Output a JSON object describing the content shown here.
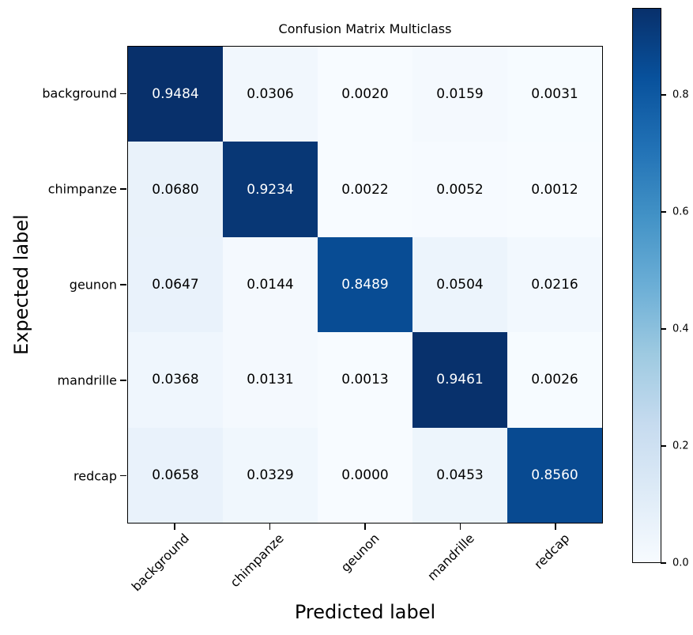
{
  "chart_data": {
    "type": "heatmap",
    "title": "Confusion Matrix Multiclass",
    "xlabel": "Predicted label",
    "ylabel": "Expected label",
    "x_categories": [
      "background",
      "chimpanze",
      "geunon",
      "mandrille",
      "redcap"
    ],
    "y_categories": [
      "background",
      "chimpanze",
      "geunon",
      "mandrille",
      "redcap"
    ],
    "matrix": [
      [
        0.9484,
        0.0306,
        0.002,
        0.0159,
        0.0031
      ],
      [
        0.068,
        0.9234,
        0.0022,
        0.0052,
        0.0012
      ],
      [
        0.0647,
        0.0144,
        0.8489,
        0.0504,
        0.0216
      ],
      [
        0.0368,
        0.0131,
        0.0013,
        0.9461,
        0.0026
      ],
      [
        0.0658,
        0.0329,
        0.0,
        0.0453,
        0.856
      ]
    ],
    "value_format_decimals": 4,
    "grid": false,
    "colormap": {
      "name": "Blues",
      "anchors": [
        "#f7fbff",
        "#deebf7",
        "#c6dbef",
        "#9ecae1",
        "#6baed6",
        "#4292c6",
        "#2171b5",
        "#08519c",
        "#08306b"
      ]
    },
    "colorbar": {
      "position": "right",
      "vmin": 0.0,
      "vmax": 0.9484,
      "tick_values": [
        0.0,
        0.2,
        0.4,
        0.6,
        0.8
      ],
      "tick_labels": [
        "0.0",
        "0.2",
        "0.4",
        "0.6",
        "0.8"
      ]
    },
    "cell_text_colors": {
      "light": "#ffffff",
      "dark": "#000000"
    }
  }
}
